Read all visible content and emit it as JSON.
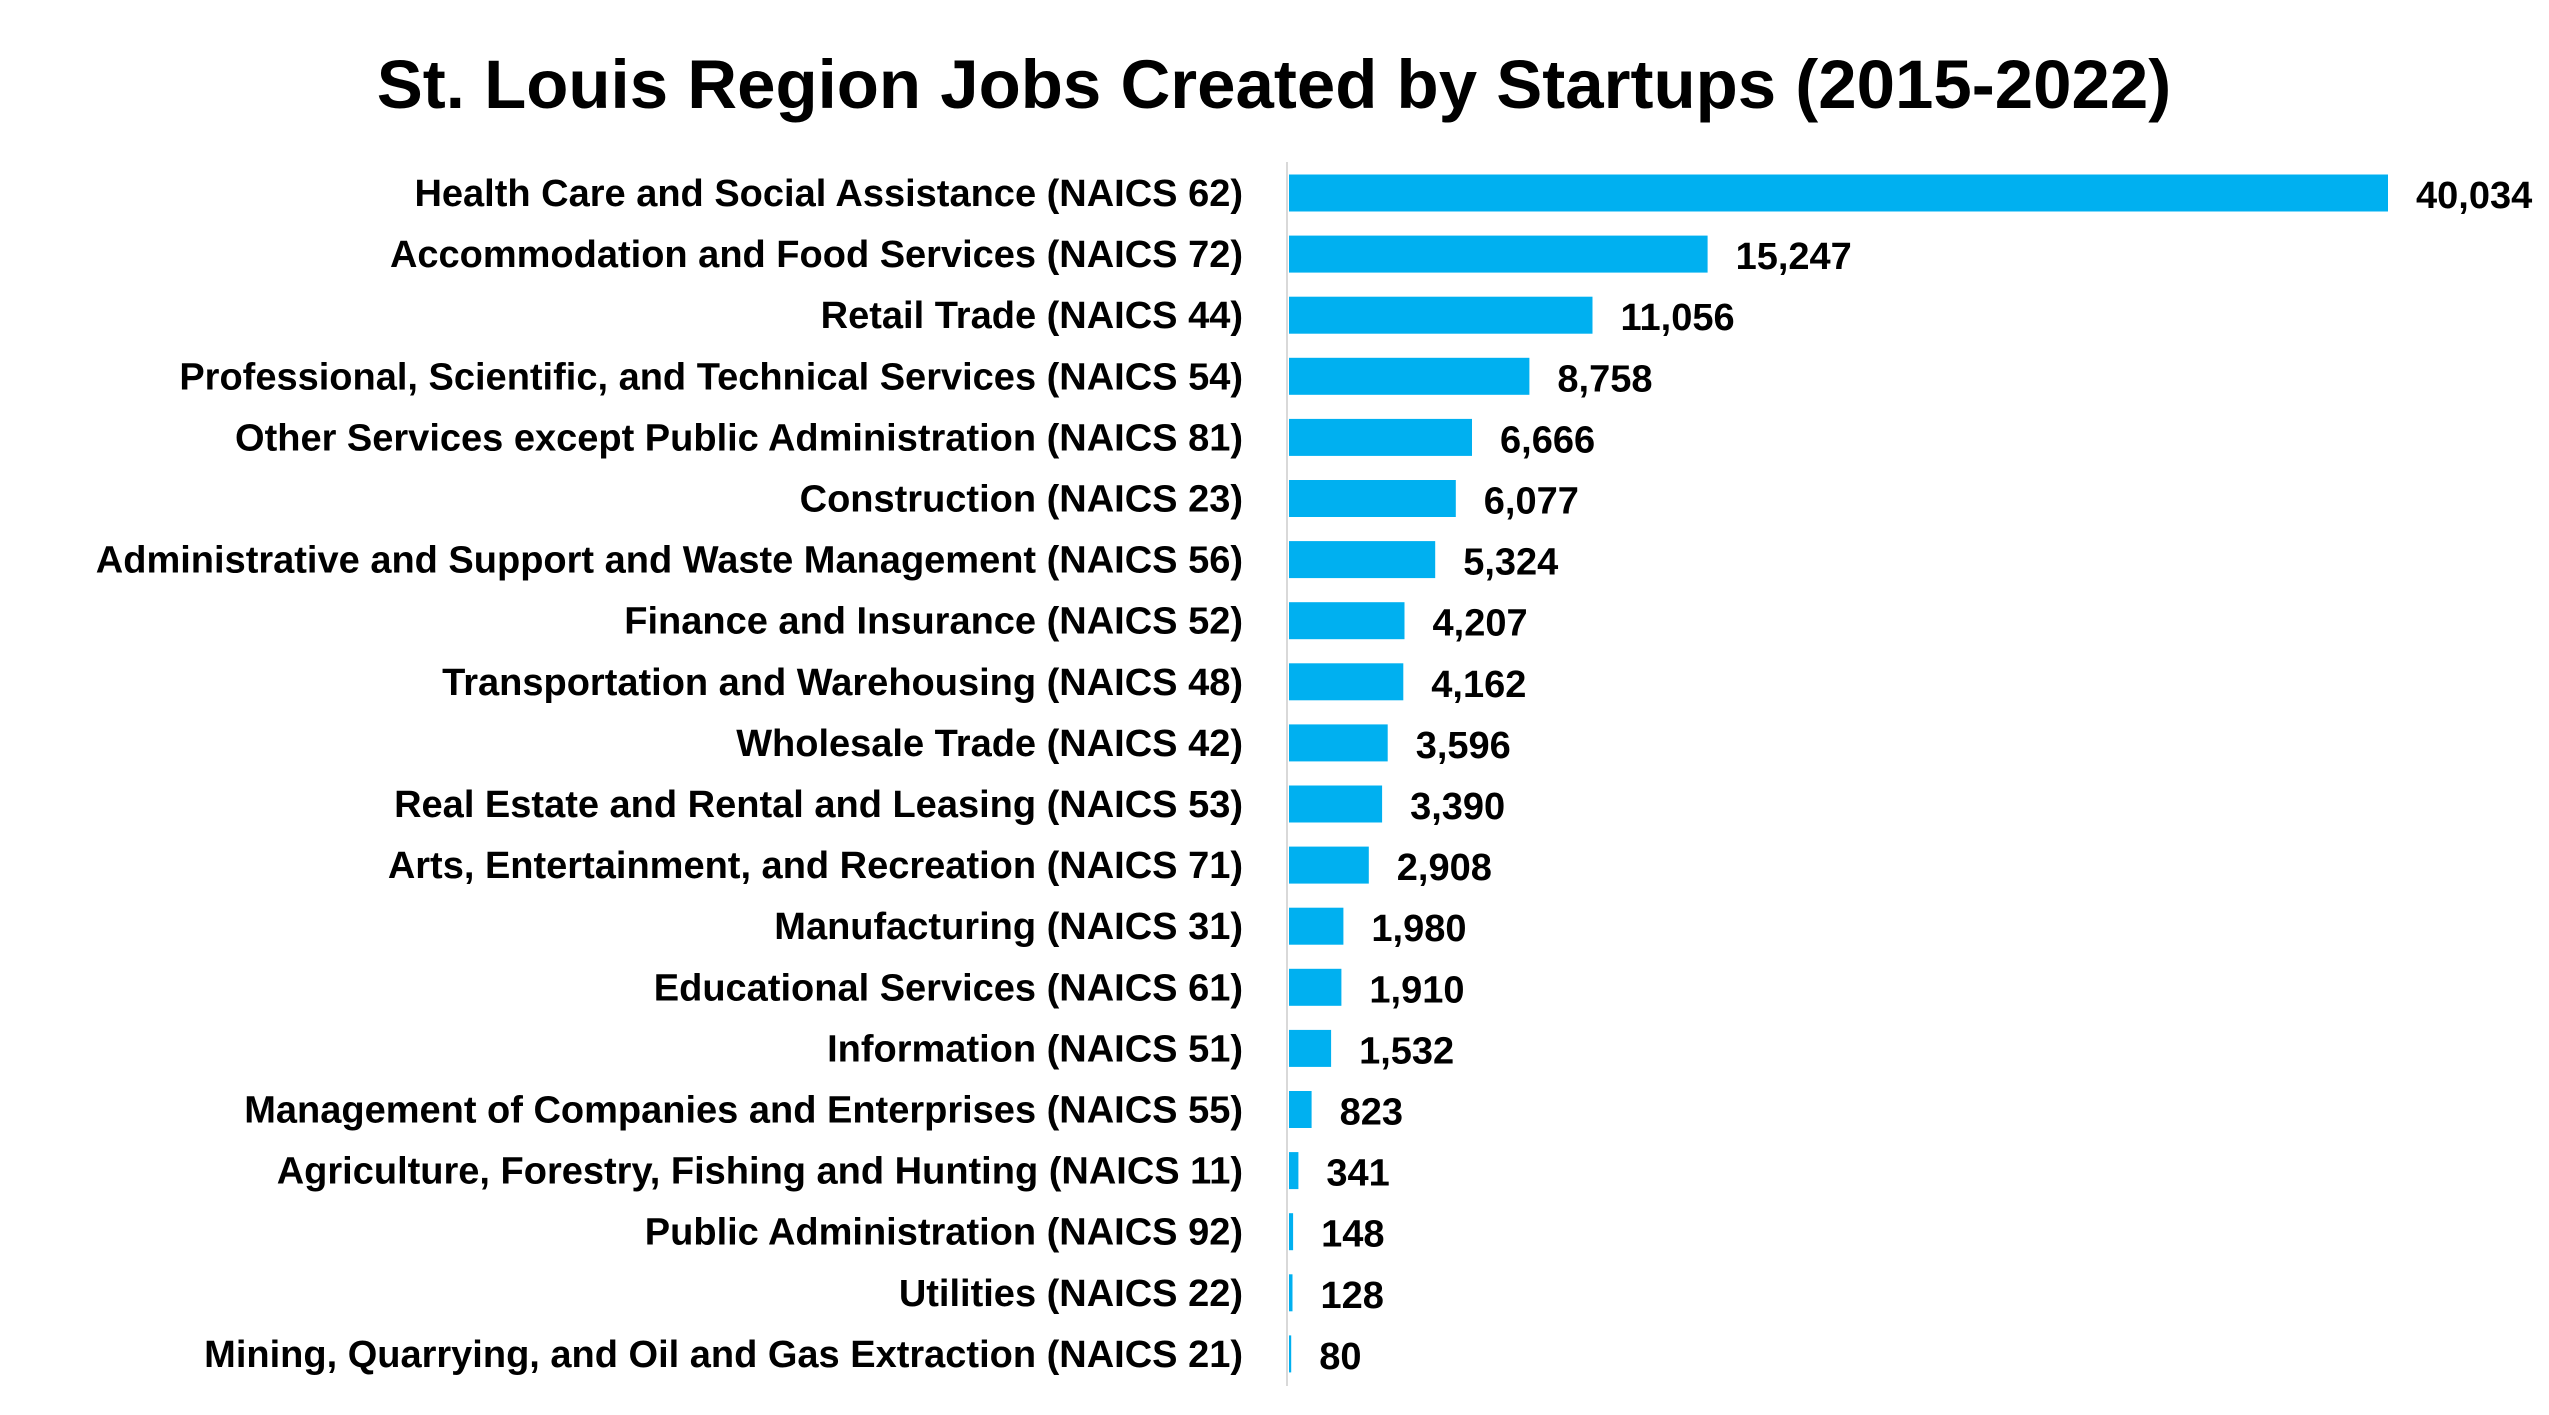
{
  "chart_data": {
    "type": "bar",
    "orientation": "horizontal",
    "title": "St. Louis Region Jobs Created by Startups (2015-2022)",
    "xlabel": "",
    "ylabel": "",
    "grid": false,
    "legend": "none",
    "bar_color": "#00B0F0",
    "axis_color": "#D9D9D9",
    "xlim": [
      0,
      40034
    ],
    "categories": [
      "Health Care and Social Assistance (NAICS 62)",
      "Accommodation and Food Services (NAICS 72)",
      "Retail Trade (NAICS 44)",
      "Professional, Scientific, and Technical Services (NAICS 54)",
      "Other Services except Public Administration (NAICS 81)",
      "Construction (NAICS 23)",
      "Administrative and Support and Waste Management (NAICS 56)",
      "Finance and Insurance (NAICS 52)",
      "Transportation and Warehousing (NAICS 48)",
      "Wholesale Trade (NAICS 42)",
      "Real Estate and Rental and Leasing (NAICS 53)",
      "Arts, Entertainment, and Recreation (NAICS 71)",
      "Manufacturing (NAICS 31)",
      "Educational Services (NAICS 61)",
      "Information (NAICS 51)",
      "Management of Companies and Enterprises (NAICS 55)",
      "Agriculture, Forestry, Fishing and Hunting (NAICS 11)",
      "Public Administration (NAICS 92)",
      "Utilities (NAICS 22)",
      "Mining, Quarrying, and Oil and Gas Extraction (NAICS 21)"
    ],
    "values": [
      40034,
      15247,
      11056,
      8758,
      6666,
      6077,
      5324,
      4207,
      4162,
      3596,
      3390,
      2908,
      1980,
      1910,
      1532,
      823,
      341,
      148,
      128,
      80
    ],
    "value_labels": [
      "40,034",
      "15,247",
      "11,056",
      "8,758",
      "6,666",
      "6,077",
      "5,324",
      "4,207",
      "4,162",
      "3,596",
      "3,390",
      "2,908",
      "1,980",
      "1,910",
      "1,532",
      "823",
      "341",
      "148",
      "128",
      "80"
    ]
  }
}
